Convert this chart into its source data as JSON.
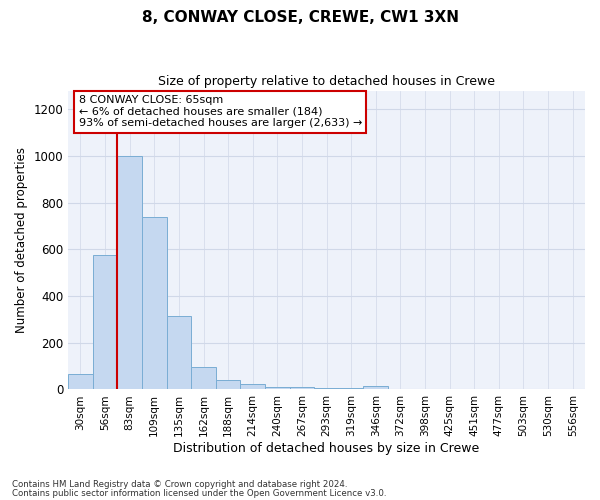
{
  "title1": "8, CONWAY CLOSE, CREWE, CW1 3XN",
  "title2": "Size of property relative to detached houses in Crewe",
  "xlabel": "Distribution of detached houses by size in Crewe",
  "ylabel": "Number of detached properties",
  "footer1": "Contains HM Land Registry data © Crown copyright and database right 2024.",
  "footer2": "Contains public sector information licensed under the Open Government Licence v3.0.",
  "annotation_line1": "8 CONWAY CLOSE: 65sqm",
  "annotation_line2": "← 6% of detached houses are smaller (184)",
  "annotation_line3": "93% of semi-detached houses are larger (2,633) →",
  "bar_color": "#c5d8f0",
  "bar_edge_color": "#7aadd4",
  "red_line_color": "#cc0000",
  "annotation_box_edge_color": "#cc0000",
  "bins": [
    "30sqm",
    "56sqm",
    "83sqm",
    "109sqm",
    "135sqm",
    "162sqm",
    "188sqm",
    "214sqm",
    "240sqm",
    "267sqm",
    "293sqm",
    "319sqm",
    "346sqm",
    "372sqm",
    "398sqm",
    "425sqm",
    "451sqm",
    "477sqm",
    "503sqm",
    "530sqm",
    "556sqm"
  ],
  "values": [
    65,
    575,
    1000,
    740,
    315,
    95,
    40,
    25,
    10,
    10,
    5,
    5,
    15,
    0,
    0,
    0,
    0,
    0,
    0,
    0,
    0
  ],
  "red_line_bin_index": 2,
  "ylim": [
    0,
    1280
  ],
  "yticks": [
    0,
    200,
    400,
    600,
    800,
    1000,
    1200
  ],
  "grid_color": "#d0d8e8",
  "plot_bg_color": "#eef2fa"
}
